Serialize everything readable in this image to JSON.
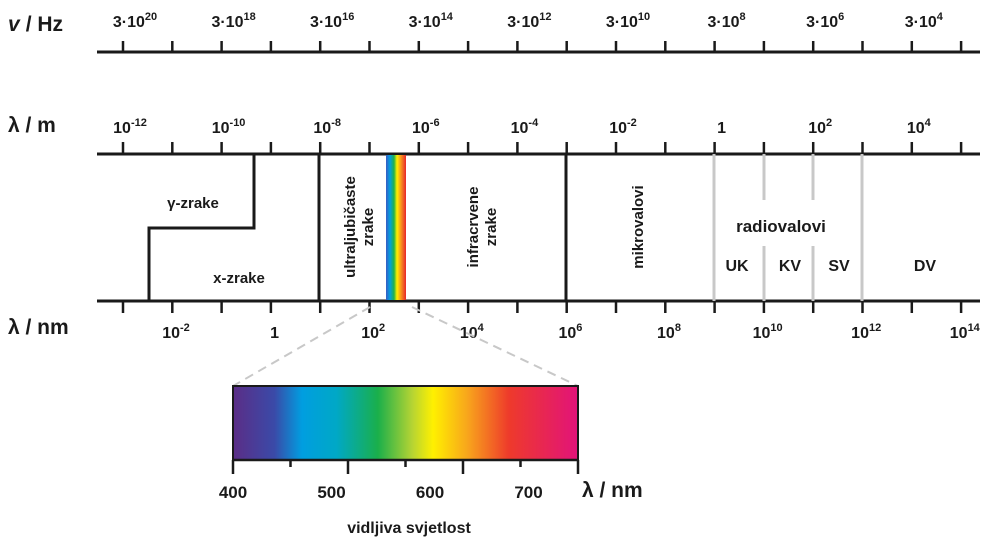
{
  "frequency_axis": {
    "title_var": "v",
    "title_unit": "/ Hz",
    "labels": [
      {
        "base": "3·10",
        "exp": "20"
      },
      {
        "base": "3·10",
        "exp": "18"
      },
      {
        "base": "3·10",
        "exp": "16"
      },
      {
        "base": "3·10",
        "exp": "14"
      },
      {
        "base": "3·10",
        "exp": "12"
      },
      {
        "base": "3·10",
        "exp": "10"
      },
      {
        "base": "3·10",
        "exp": "8"
      },
      {
        "base": "3·10",
        "exp": "6"
      },
      {
        "base": "3·10",
        "exp": "4"
      }
    ]
  },
  "wavelength_m_axis": {
    "title": "λ / m",
    "labels": [
      {
        "base": "10",
        "exp": "-12"
      },
      {
        "base": "10",
        "exp": "-10"
      },
      {
        "base": "10",
        "exp": "-8"
      },
      {
        "base": "10",
        "exp": "-6"
      },
      {
        "base": "10",
        "exp": "-4"
      },
      {
        "base": "10",
        "exp": "-2"
      },
      {
        "base": "1",
        "exp": ""
      },
      {
        "base": "10",
        "exp": "2"
      },
      {
        "base": "10",
        "exp": "4"
      }
    ]
  },
  "wavelength_nm_axis": {
    "title": "λ / nm",
    "labels": [
      {
        "base": "10",
        "exp": "-2"
      },
      {
        "base": "1",
        "exp": ""
      },
      {
        "base": "10",
        "exp": "2"
      },
      {
        "base": "10",
        "exp": "4"
      },
      {
        "base": "10",
        "exp": "6"
      },
      {
        "base": "10",
        "exp": "8"
      },
      {
        "base": "10",
        "exp": "10"
      },
      {
        "base": "10",
        "exp": "12"
      },
      {
        "base": "10",
        "exp": "14"
      }
    ]
  },
  "regions": {
    "gamma": "γ-zrake",
    "xray": "x-zrake",
    "uv_line1": "ultraljubičaste",
    "uv_line2": "zrake",
    "ir_line1": "infracrvene",
    "ir_line2": "zrake",
    "microwave": "mikrovalovi",
    "radio": "radiovalovi",
    "bands": [
      "UK",
      "KV",
      "SV",
      "DV"
    ]
  },
  "visible": {
    "ticks": [
      "400",
      "500",
      "600",
      "700"
    ],
    "unit": "λ / nm",
    "caption": "vidljiva svjetlost"
  },
  "colors": {
    "line": "#1a1a1a",
    "radio_dividers": "#c8c8c8",
    "zoom_dashes": "#c8c8c8",
    "spectrum": [
      "#5b2d86",
      "#2f56c8",
      "#00a0e0",
      "#18b04a",
      "#f7ec00",
      "#f7a21b",
      "#e8262a",
      "#e0187a"
    ]
  }
}
